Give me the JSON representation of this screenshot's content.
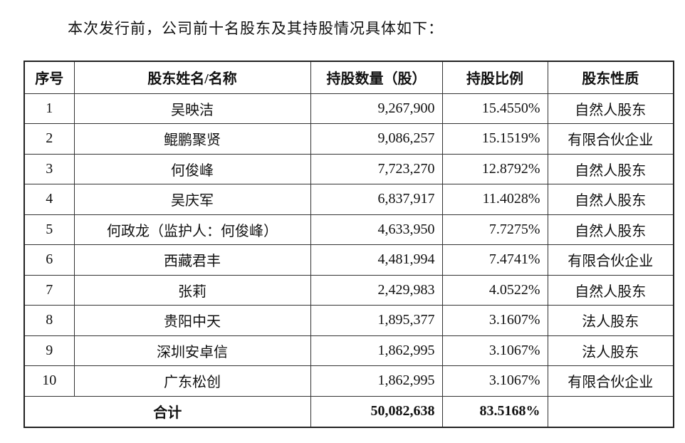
{
  "intro": "本次发行前，公司前十名股东及其持股情况具体如下：",
  "table": {
    "header": [
      "序号",
      "股东姓名/名称",
      "持股数量（股）",
      "持股比例",
      "股东性质"
    ],
    "rows": [
      [
        "1",
        "吴映洁",
        "9,267,900",
        "15.4550%",
        "自然人股东"
      ],
      [
        "2",
        "鲲鹏聚贤",
        "9,086,257",
        "15.1519%",
        "有限合伙企业"
      ],
      [
        "3",
        "何俊峰",
        "7,723,270",
        "12.8792%",
        "自然人股东"
      ],
      [
        "4",
        "吴庆军",
        "6,837,917",
        "11.4028%",
        "自然人股东"
      ],
      [
        "5",
        "何政龙（监护人：何俊峰）",
        "4,633,950",
        "7.7275%",
        "自然人股东"
      ],
      [
        "6",
        "西藏君丰",
        "4,481,994",
        "7.4741%",
        "有限合伙企业"
      ],
      [
        "7",
        "张莉",
        "2,429,983",
        "4.0522%",
        "自然人股东"
      ],
      [
        "8",
        "贵阳中天",
        "1,895,377",
        "3.1607%",
        "法人股东"
      ],
      [
        "9",
        "深圳安卓信",
        "1,862,995",
        "3.1067%",
        "法人股东"
      ],
      [
        "10",
        "广东松创",
        "1,862,995",
        "3.1067%",
        "有限合伙企业"
      ]
    ],
    "total": [
      "合计",
      "50,082,638",
      "83.5168%"
    ]
  }
}
